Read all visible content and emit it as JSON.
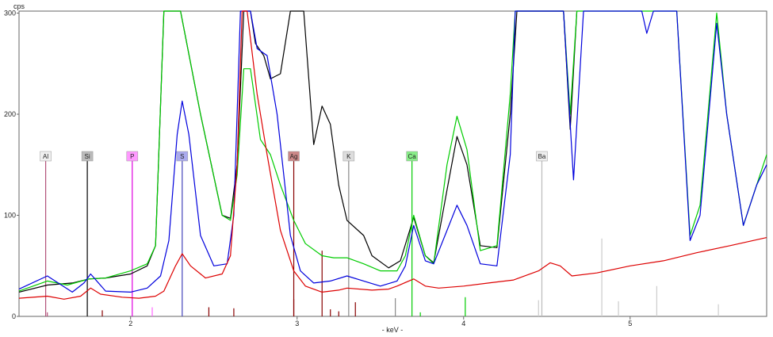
{
  "chart_data": {
    "type": "line",
    "title": "",
    "xlabel": "- keV -",
    "ylabel": "cps",
    "xlim": [
      1.33,
      5.82
    ],
    "ylim": [
      0,
      302
    ],
    "x_ticks": [
      2,
      3,
      4,
      5
    ],
    "y_ticks": [
      0,
      100,
      200,
      300
    ],
    "grid": false,
    "legend": "none",
    "series": [
      {
        "color": "#000000",
        "points": [
          [
            1.33,
            24
          ],
          [
            1.5,
            31
          ],
          [
            1.65,
            33
          ],
          [
            1.75,
            37
          ],
          [
            1.85,
            38
          ],
          [
            2.0,
            42
          ],
          [
            2.1,
            50
          ],
          [
            2.15,
            70
          ],
          [
            2.2,
            302
          ],
          [
            2.3,
            302
          ],
          [
            2.42,
            200
          ],
          [
            2.55,
            100
          ],
          [
            2.6,
            97
          ],
          [
            2.64,
            150
          ],
          [
            2.68,
            302
          ],
          [
            2.72,
            302
          ],
          [
            2.75,
            270
          ],
          [
            2.8,
            258
          ],
          [
            2.84,
            235
          ],
          [
            2.9,
            240
          ],
          [
            2.96,
            302
          ],
          [
            3.04,
            302
          ],
          [
            3.1,
            170
          ],
          [
            3.15,
            208
          ],
          [
            3.2,
            190
          ],
          [
            3.25,
            130
          ],
          [
            3.3,
            95
          ],
          [
            3.4,
            80
          ],
          [
            3.45,
            60
          ],
          [
            3.55,
            48
          ],
          [
            3.62,
            55
          ],
          [
            3.7,
            98
          ],
          [
            3.77,
            60
          ],
          [
            3.82,
            53
          ],
          [
            3.9,
            125
          ],
          [
            3.96,
            178
          ],
          [
            4.02,
            150
          ],
          [
            4.1,
            70
          ],
          [
            4.2,
            68
          ],
          [
            4.28,
            200
          ],
          [
            4.32,
            302
          ],
          [
            4.6,
            302
          ],
          [
            4.64,
            185
          ],
          [
            4.68,
            302
          ]
        ]
      },
      {
        "color": "#00cc00",
        "points": [
          [
            1.33,
            25
          ],
          [
            1.5,
            35
          ],
          [
            1.62,
            31
          ],
          [
            1.75,
            37
          ],
          [
            1.85,
            38
          ],
          [
            2.0,
            45
          ],
          [
            2.1,
            52
          ],
          [
            2.15,
            70
          ],
          [
            2.2,
            302
          ],
          [
            2.3,
            302
          ],
          [
            2.42,
            200
          ],
          [
            2.55,
            100
          ],
          [
            2.6,
            95
          ],
          [
            2.64,
            140
          ],
          [
            2.68,
            245
          ],
          [
            2.72,
            245
          ],
          [
            2.78,
            175
          ],
          [
            2.84,
            160
          ],
          [
            2.9,
            130
          ],
          [
            2.98,
            95
          ],
          [
            3.05,
            72
          ],
          [
            3.15,
            60
          ],
          [
            3.22,
            58
          ],
          [
            3.3,
            58
          ],
          [
            3.4,
            52
          ],
          [
            3.5,
            45
          ],
          [
            3.6,
            45
          ],
          [
            3.65,
            60
          ],
          [
            3.7,
            100
          ],
          [
            3.77,
            60
          ],
          [
            3.82,
            52
          ],
          [
            3.9,
            150
          ],
          [
            3.96,
            198
          ],
          [
            4.02,
            165
          ],
          [
            4.1,
            65
          ],
          [
            4.2,
            70
          ],
          [
            4.28,
            220
          ],
          [
            4.31,
            302
          ],
          [
            4.6,
            302
          ],
          [
            4.64,
            200
          ],
          [
            4.68,
            302
          ],
          [
            5.28,
            302
          ],
          [
            5.36,
            80
          ],
          [
            5.42,
            110
          ],
          [
            5.52,
            300
          ],
          [
            5.58,
            200
          ],
          [
            5.68,
            90
          ],
          [
            5.76,
            130
          ],
          [
            5.82,
            160
          ]
        ]
      },
      {
        "color": "#0000dd",
        "points": [
          [
            1.33,
            27
          ],
          [
            1.5,
            40
          ],
          [
            1.65,
            24
          ],
          [
            1.72,
            33
          ],
          [
            1.76,
            42
          ],
          [
            1.85,
            25
          ],
          [
            2.0,
            24
          ],
          [
            2.1,
            28
          ],
          [
            2.18,
            40
          ],
          [
            2.23,
            75
          ],
          [
            2.28,
            180
          ],
          [
            2.31,
            213
          ],
          [
            2.35,
            180
          ],
          [
            2.42,
            80
          ],
          [
            2.5,
            50
          ],
          [
            2.58,
            52
          ],
          [
            2.62,
            100
          ],
          [
            2.66,
            302
          ],
          [
            2.72,
            302
          ],
          [
            2.76,
            265
          ],
          [
            2.82,
            258
          ],
          [
            2.88,
            200
          ],
          [
            2.96,
            80
          ],
          [
            3.02,
            45
          ],
          [
            3.1,
            33
          ],
          [
            3.2,
            35
          ],
          [
            3.3,
            40
          ],
          [
            3.4,
            35
          ],
          [
            3.5,
            30
          ],
          [
            3.6,
            35
          ],
          [
            3.65,
            50
          ],
          [
            3.7,
            90
          ],
          [
            3.77,
            55
          ],
          [
            3.82,
            52
          ],
          [
            3.9,
            85
          ],
          [
            3.96,
            110
          ],
          [
            4.02,
            90
          ],
          [
            4.1,
            52
          ],
          [
            4.2,
            50
          ],
          [
            4.28,
            160
          ],
          [
            4.31,
            302
          ],
          [
            4.6,
            302
          ],
          [
            4.66,
            135
          ],
          [
            4.72,
            302
          ],
          [
            5.07,
            302
          ],
          [
            5.1,
            280
          ],
          [
            5.14,
            302
          ],
          [
            5.28,
            302
          ],
          [
            5.36,
            75
          ],
          [
            5.42,
            100
          ],
          [
            5.52,
            290
          ],
          [
            5.58,
            200
          ],
          [
            5.68,
            90
          ],
          [
            5.76,
            130
          ],
          [
            5.82,
            150
          ]
        ]
      },
      {
        "color": "#dd0000",
        "points": [
          [
            1.33,
            18
          ],
          [
            1.5,
            20
          ],
          [
            1.6,
            17
          ],
          [
            1.7,
            20
          ],
          [
            1.76,
            28
          ],
          [
            1.82,
            22
          ],
          [
            1.95,
            19
          ],
          [
            2.05,
            18
          ],
          [
            2.15,
            20
          ],
          [
            2.2,
            25
          ],
          [
            2.27,
            50
          ],
          [
            2.31,
            62
          ],
          [
            2.36,
            50
          ],
          [
            2.45,
            38
          ],
          [
            2.55,
            42
          ],
          [
            2.6,
            60
          ],
          [
            2.64,
            150
          ],
          [
            2.67,
            302
          ],
          [
            2.7,
            302
          ],
          [
            2.76,
            220
          ],
          [
            2.82,
            160
          ],
          [
            2.9,
            85
          ],
          [
            2.98,
            45
          ],
          [
            3.05,
            30
          ],
          [
            3.15,
            24
          ],
          [
            3.25,
            26
          ],
          [
            3.3,
            28
          ],
          [
            3.45,
            26
          ],
          [
            3.55,
            27
          ],
          [
            3.6,
            30
          ],
          [
            3.7,
            37
          ],
          [
            3.77,
            30
          ],
          [
            3.85,
            28
          ],
          [
            4.0,
            30
          ],
          [
            4.15,
            33
          ],
          [
            4.3,
            36
          ],
          [
            4.45,
            45
          ],
          [
            4.52,
            53
          ],
          [
            4.58,
            50
          ],
          [
            4.65,
            40
          ],
          [
            4.8,
            43
          ],
          [
            5.0,
            50
          ],
          [
            5.2,
            55
          ],
          [
            5.4,
            63
          ],
          [
            5.6,
            70
          ],
          [
            5.82,
            78
          ]
        ]
      }
    ],
    "element_markers": [
      {
        "symbol": "Al",
        "x": 1.49,
        "color": "#b2527a",
        "bg": "#f0f0f0"
      },
      {
        "symbol": "Si",
        "x": 1.74,
        "color": "#000000",
        "bg": "#bbbbbb"
      },
      {
        "symbol": "P",
        "x": 2.01,
        "color": "#e000e0",
        "bg": "#ff99ff"
      },
      {
        "symbol": "S",
        "x": 2.31,
        "color": "#4545bb",
        "bg": "#aaaaee"
      },
      {
        "symbol": "Ag",
        "x": 2.98,
        "color": "#880000",
        "bg": "#cc8888"
      },
      {
        "symbol": "K",
        "x": 3.31,
        "color": "#888888",
        "bg": "#dddddd"
      },
      {
        "symbol": "Ca",
        "x": 3.69,
        "color": "#00cc00",
        "bg": "#88ee88"
      },
      {
        "symbol": "Ba",
        "x": 4.47,
        "color": "#bbbbbb",
        "bg": "#eeeeee"
      }
    ],
    "line_markers": [
      {
        "x": 1.5,
        "h": 4,
        "color": "#b2527a"
      },
      {
        "x": 1.83,
        "h": 6,
        "color": "#880000"
      },
      {
        "x": 2.13,
        "h": 9,
        "color": "#ff66ff"
      },
      {
        "x": 2.47,
        "h": 9,
        "color": "#880000"
      },
      {
        "x": 2.62,
        "h": 8,
        "color": "#880000"
      },
      {
        "x": 2.98,
        "h": 17,
        "color": "#880000"
      },
      {
        "x": 3.15,
        "h": 65,
        "color": "#880000"
      },
      {
        "x": 3.2,
        "h": 7,
        "color": "#880000"
      },
      {
        "x": 3.25,
        "h": 5,
        "color": "#880000"
      },
      {
        "x": 3.35,
        "h": 14,
        "color": "#880000"
      },
      {
        "x": 3.59,
        "h": 18,
        "color": "#888888"
      },
      {
        "x": 3.74,
        "h": 4,
        "color": "#00cc00"
      },
      {
        "x": 4.01,
        "h": 19,
        "color": "#00cc00"
      },
      {
        "x": 4.45,
        "h": 16,
        "color": "#cccccc"
      },
      {
        "x": 4.83,
        "h": 77,
        "color": "#cccccc"
      },
      {
        "x": 4.93,
        "h": 15,
        "color": "#cccccc"
      },
      {
        "x": 5.16,
        "h": 30,
        "color": "#cccccc"
      },
      {
        "x": 5.53,
        "h": 12,
        "color": "#cccccc"
      }
    ]
  }
}
